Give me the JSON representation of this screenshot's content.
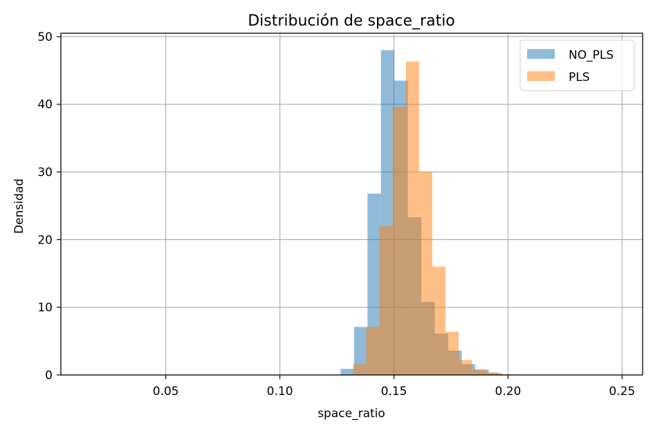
{
  "chart_data": {
    "type": "histogram",
    "title": "Distribución de space_ratio",
    "xlabel": "space_ratio",
    "ylabel": "Densidad",
    "xlim": [
      0.004,
      0.259
    ],
    "ylim": [
      0,
      50.5
    ],
    "xticks": [
      0.05,
      0.1,
      0.15,
      0.2,
      0.25
    ],
    "xtick_labels": [
      "0.05",
      "0.10",
      "0.15",
      "0.20",
      "0.25"
    ],
    "yticks": [
      0,
      10,
      20,
      30,
      40,
      50
    ],
    "ytick_labels": [
      "0",
      "10",
      "20",
      "30",
      "40",
      "50"
    ],
    "grid": true,
    "legend_position": "top-right",
    "series": [
      {
        "name": "NO_PLS",
        "color": "#1f77b4",
        "alpha": 0.5,
        "bins": [
          {
            "x0": 0.1266,
            "x1": 0.1325,
            "value": 0.9
          },
          {
            "x0": 0.1325,
            "x1": 0.1384,
            "value": 7.1
          },
          {
            "x0": 0.1384,
            "x1": 0.1443,
            "value": 26.8
          },
          {
            "x0": 0.1443,
            "x1": 0.1502,
            "value": 48.0
          },
          {
            "x0": 0.1502,
            "x1": 0.1561,
            "value": 43.5
          },
          {
            "x0": 0.1561,
            "x1": 0.162,
            "value": 23.3
          },
          {
            "x0": 0.162,
            "x1": 0.1679,
            "value": 10.8
          },
          {
            "x0": 0.1679,
            "x1": 0.1738,
            "value": 6.1
          },
          {
            "x0": 0.1738,
            "x1": 0.1797,
            "value": 3.6
          },
          {
            "x0": 0.1797,
            "x1": 0.1856,
            "value": 1.6
          },
          {
            "x0": 0.1856,
            "x1": 0.1915,
            "value": 0.8
          },
          {
            "x0": 0.1915,
            "x1": 0.1974,
            "value": 0.25
          }
        ]
      },
      {
        "name": "PLS",
        "color": "#ff7f0e",
        "alpha": 0.5,
        "bins": [
          {
            "x0": 0.132,
            "x1": 0.1378,
            "value": 1.6
          },
          {
            "x0": 0.1378,
            "x1": 0.1436,
            "value": 7.1
          },
          {
            "x0": 0.1436,
            "x1": 0.1494,
            "value": 22.0
          },
          {
            "x0": 0.1494,
            "x1": 0.1552,
            "value": 39.6
          },
          {
            "x0": 0.1552,
            "x1": 0.161,
            "value": 46.3
          },
          {
            "x0": 0.161,
            "x1": 0.1668,
            "value": 30.0
          },
          {
            "x0": 0.1668,
            "x1": 0.1726,
            "value": 16.0
          },
          {
            "x0": 0.1726,
            "x1": 0.1784,
            "value": 6.4
          },
          {
            "x0": 0.1784,
            "x1": 0.1842,
            "value": 2.2
          },
          {
            "x0": 0.1842,
            "x1": 0.19,
            "value": 0.8
          },
          {
            "x0": 0.19,
            "x1": 0.1958,
            "value": 0.4
          },
          {
            "x0": 0.1958,
            "x1": 0.2016,
            "value": 0.1
          }
        ]
      }
    ]
  }
}
